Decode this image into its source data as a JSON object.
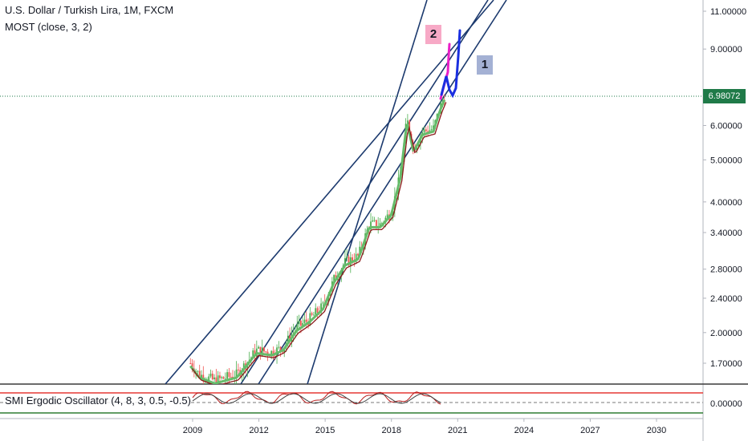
{
  "header": {
    "title": "U.S. Dollar / Turkish Lira, 1M, FXCM",
    "indicator": "MOST (close, 3, 2)"
  },
  "oscillator": {
    "label": "SMI Ergodic Oscillator (4, 8, 3, 0.5, -0.5)"
  },
  "current_price": "6.98072",
  "price_axis": {
    "ticks": [
      "11.00000",
      "9.00000",
      "6.00000",
      "5.00000",
      "4.00000",
      "3.40000",
      "2.80000",
      "2.40000",
      "2.00000",
      "1.70000"
    ]
  },
  "oscillator_axis": {
    "ticks": [
      "0.00000"
    ]
  },
  "time_axis": {
    "ticks": [
      "2009",
      "2012",
      "2015",
      "2018",
      "2021",
      "2024",
      "2027",
      "2030"
    ]
  },
  "annotations": {
    "label_1": "1",
    "label_2": "2"
  },
  "colors": {
    "trendline": "#1c3a6e",
    "candle_up": "#4caf50",
    "candle_down": "#ef5350",
    "most_line": "#8b1a1a",
    "projection_1": "#1a2fe0",
    "projection_2": "#e91fc7",
    "price_tag": "#1f7a48",
    "osc_upper": "#e53935",
    "osc_lower": "#2e7d32"
  },
  "chart_data": {
    "type": "line",
    "title": "U.S. Dollar / Turkish Lira, 1M, FXCM",
    "x_range": [
      2006,
      2031.5
    ],
    "y_scale": "log",
    "y_range": [
      1.55,
      11.5
    ],
    "approx_close": [
      {
        "x": 2008.9,
        "y": 1.7
      },
      {
        "x": 2009.3,
        "y": 1.6
      },
      {
        "x": 2010.0,
        "y": 1.55
      },
      {
        "x": 2011.0,
        "y": 1.6
      },
      {
        "x": 2011.9,
        "y": 1.82
      },
      {
        "x": 2012.6,
        "y": 1.8
      },
      {
        "x": 2013.1,
        "y": 1.85
      },
      {
        "x": 2013.7,
        "y": 2.05
      },
      {
        "x": 2014.3,
        "y": 2.15
      },
      {
        "x": 2014.9,
        "y": 2.3
      },
      {
        "x": 2015.4,
        "y": 2.65
      },
      {
        "x": 2015.9,
        "y": 2.9
      },
      {
        "x": 2016.5,
        "y": 3.0
      },
      {
        "x": 2017.0,
        "y": 3.55
      },
      {
        "x": 2017.5,
        "y": 3.55
      },
      {
        "x": 2018.0,
        "y": 3.8
      },
      {
        "x": 2018.4,
        "y": 4.6
      },
      {
        "x": 2018.7,
        "y": 6.2
      },
      {
        "x": 2019.0,
        "y": 5.3
      },
      {
        "x": 2019.4,
        "y": 5.8
      },
      {
        "x": 2019.9,
        "y": 5.9
      },
      {
        "x": 2020.2,
        "y": 6.6
      },
      {
        "x": 2020.4,
        "y": 6.98
      }
    ],
    "current_value": 6.98072,
    "time_ticks": [
      2009,
      2012,
      2015,
      2018,
      2021,
      2024,
      2027,
      2030
    ],
    "price_ticks": [
      11,
      9,
      6,
      5,
      4,
      3.4,
      2.8,
      2.4,
      2.0,
      1.7
    ],
    "grid": false
  }
}
